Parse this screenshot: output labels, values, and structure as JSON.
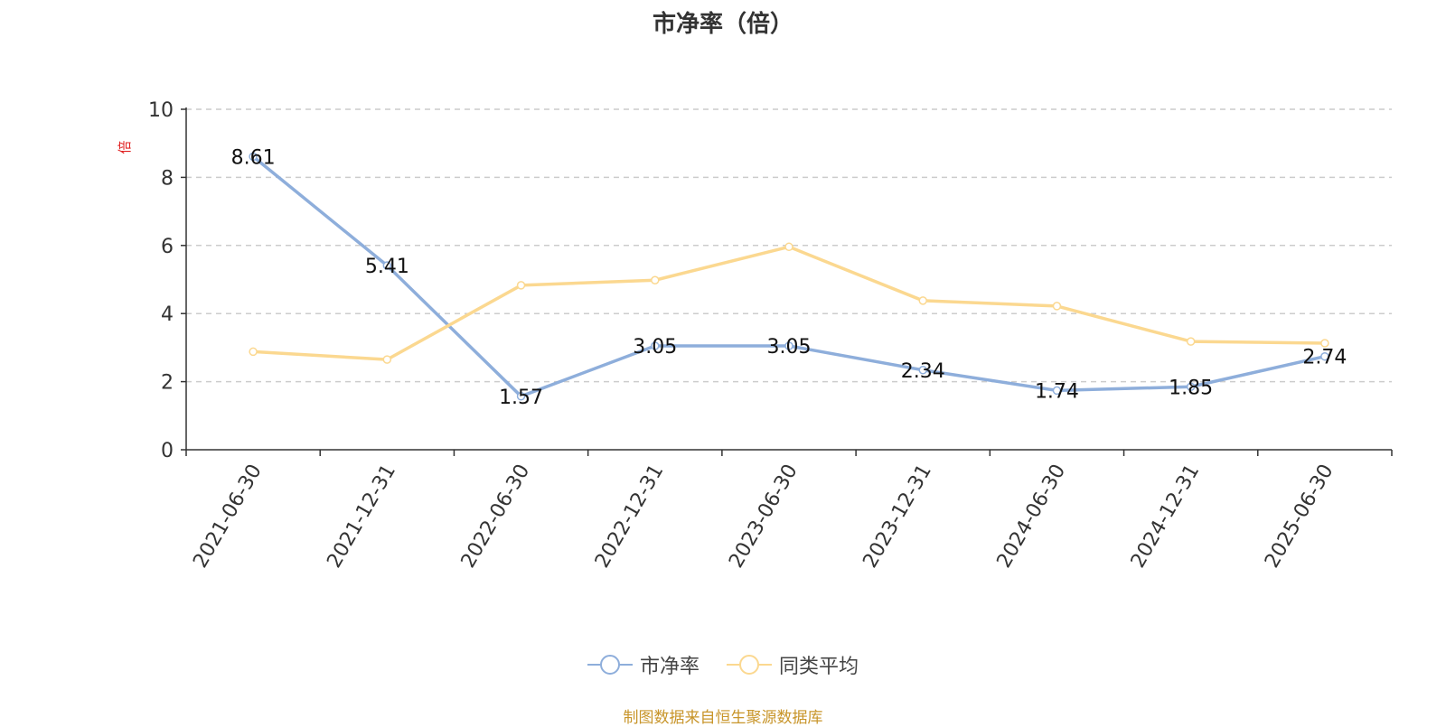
{
  "title": "市净率（倍）",
  "source": "制图数据来自恒生聚源数据库",
  "colors": {
    "series1": "#8eaedb",
    "series2": "#fbd890",
    "ylabel": "#e02020"
  },
  "chart_data": {
    "type": "line",
    "title": "市净率（倍）",
    "ylabel": "倍",
    "ylim": [
      0,
      10
    ],
    "yticks": [
      "0",
      "2",
      "4",
      "6",
      "8",
      "10"
    ],
    "grid": true,
    "legend_position": "bottom",
    "categories": [
      "2021-06-30",
      "2021-12-31",
      "2022-06-30",
      "2022-12-31",
      "2023-06-30",
      "2023-12-31",
      "2024-06-30",
      "2024-12-31",
      "2025-06-30"
    ],
    "series": [
      {
        "name": "市净率",
        "values": [
          8.61,
          5.41,
          1.57,
          3.05,
          3.05,
          2.34,
          1.74,
          1.85,
          2.74
        ],
        "labels": [
          "8.61",
          "5.41",
          "1.57",
          "3.05",
          "3.05",
          "2.34",
          "1.74",
          "1.85",
          "2.74"
        ]
      },
      {
        "name": "同类平均",
        "values": [
          2.88,
          2.65,
          4.83,
          4.98,
          5.96,
          4.38,
          4.22,
          3.18,
          3.13
        ]
      }
    ]
  }
}
